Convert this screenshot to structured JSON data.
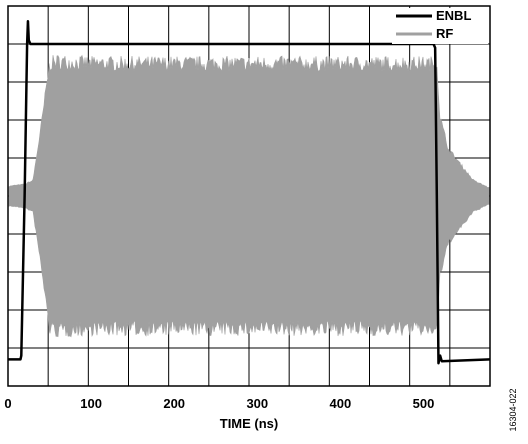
{
  "chart_data": {
    "type": "line",
    "title": "",
    "xlabel": "TIME (ns)",
    "ylabel": "",
    "xlim": [
      0,
      580
    ],
    "ylim": [
      -5,
      5
    ],
    "x_ticks": [
      0,
      100,
      200,
      300,
      400,
      500
    ],
    "x_tick_labels": [
      "0",
      "100",
      "200",
      "300",
      "400",
      "500"
    ],
    "grid": true,
    "legend_position": "top-right",
    "y_tick_labels_shown": false,
    "series": [
      {
        "name": "ENBL",
        "color": "#000000",
        "style": "line",
        "points": [
          [
            0,
            -4.3
          ],
          [
            15,
            -4.3
          ],
          [
            16,
            -4.2
          ],
          [
            20,
            0
          ],
          [
            23,
            4.0
          ],
          [
            24,
            4.6
          ],
          [
            25,
            4.1
          ],
          [
            27,
            4.0
          ],
          [
            512,
            4.0
          ],
          [
            514,
            3.9
          ],
          [
            516,
            0
          ],
          [
            518,
            -4.4
          ],
          [
            520,
            -4.2
          ],
          [
            522,
            -4.35
          ],
          [
            580,
            -4.3
          ]
        ]
      },
      {
        "name": "RF",
        "color": "#a0a0a0",
        "style": "band",
        "upper": [
          [
            0,
            0.25
          ],
          [
            20,
            0.3
          ],
          [
            30,
            0.4
          ],
          [
            40,
            1.8
          ],
          [
            50,
            3.4
          ],
          [
            60,
            3.45
          ],
          [
            100,
            3.4
          ],
          [
            200,
            3.4
          ],
          [
            300,
            3.4
          ],
          [
            400,
            3.4
          ],
          [
            500,
            3.4
          ],
          [
            516,
            3.4
          ],
          [
            520,
            2.0
          ],
          [
            530,
            1.2
          ],
          [
            545,
            0.8
          ],
          [
            560,
            0.4
          ],
          [
            580,
            0.2
          ]
        ],
        "lower": [
          [
            0,
            -0.25
          ],
          [
            20,
            -0.3
          ],
          [
            30,
            -0.4
          ],
          [
            40,
            -1.8
          ],
          [
            50,
            -3.4
          ],
          [
            60,
            -3.45
          ],
          [
            100,
            -3.4
          ],
          [
            200,
            -3.4
          ],
          [
            300,
            -3.4
          ],
          [
            400,
            -3.4
          ],
          [
            500,
            -3.4
          ],
          [
            516,
            -3.4
          ],
          [
            520,
            -2.0
          ],
          [
            530,
            -1.2
          ],
          [
            545,
            -0.8
          ],
          [
            560,
            -0.4
          ],
          [
            580,
            -0.2
          ]
        ]
      }
    ]
  },
  "figure_id": "16304-022"
}
